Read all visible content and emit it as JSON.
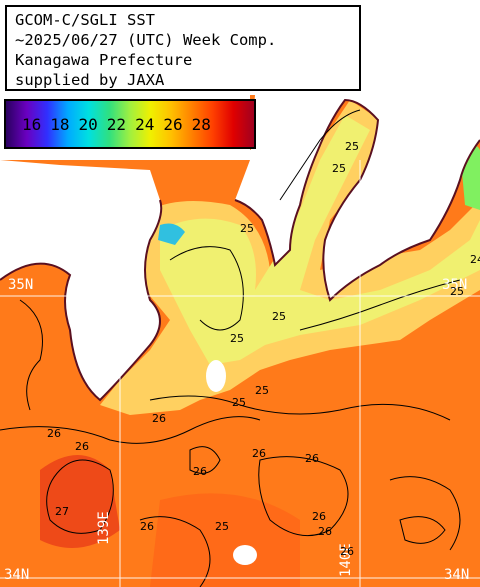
{
  "title": {
    "lines": [
      "GCOM-C/SGLI SST",
      "~2025/06/27 (UTC) Week Comp.",
      "Kanagawa Prefecture",
      "supplied by JAXA"
    ]
  },
  "legend": {
    "ticks": [
      "16",
      "18",
      "20",
      "22",
      "24",
      "26",
      "28"
    ],
    "colors": [
      "#2a0060",
      "#6a00c0",
      "#3030ff",
      "#00aaff",
      "#00e0e0",
      "#30e080",
      "#a0f040",
      "#f0f000",
      "#ffc000",
      "#ff8000",
      "#ff4000",
      "#e00000",
      "#a00020"
    ]
  },
  "grid_labels": {
    "lat_35n_left": "35N",
    "lat_35n_right": "35N",
    "lat_34n_left": "34N",
    "lat_34n_right": "34N",
    "lon_139e": "139E",
    "lon_140e": "140E"
  },
  "contours": {
    "c1": "25",
    "c2": "25",
    "c3": "25",
    "c4": "25",
    "c5": "25",
    "c6": "25",
    "c7": "24",
    "c8": "25",
    "c9": "26",
    "c10": "26",
    "c11": "26",
    "c12": "26",
    "c13": "26",
    "c14": "27",
    "c15": "26",
    "c16": "25",
    "c17": "26",
    "c18": "26",
    "c19": "26",
    "c20": "25",
    "c21": "26"
  },
  "colors": {
    "land": "#ffffff",
    "sea_warm": "#ff7a1a",
    "sea_warm_dark": "#f05a10",
    "sea_cool": "#ffd060",
    "sea_cooler": "#f0f070",
    "coast_cold": "#80f060",
    "grid": "#ffffff",
    "contour": "#000000"
  }
}
